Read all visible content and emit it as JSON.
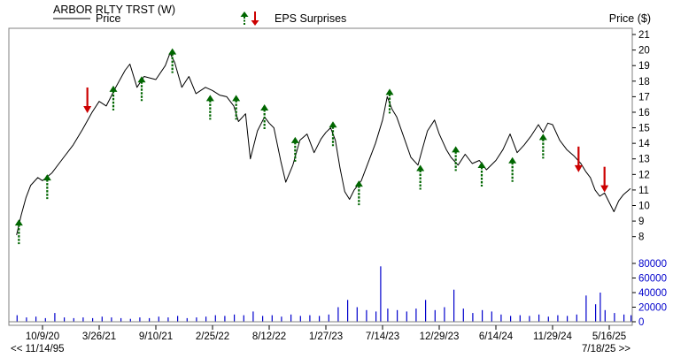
{
  "header": {
    "title": "ARBOR RLTY TRST (W)",
    "legend_price_label": "Price",
    "eps_label": "EPS Surprises",
    "price_axis_label": "Price ($)",
    "start_date_label": "<< 11/14/95",
    "end_date_label": "7/18/25 >>"
  },
  "colors": {
    "price_line": "#000000",
    "volume": "#0000cc",
    "eps_positive": "#006600",
    "eps_negative": "#cc0000",
    "frame": "#808080"
  },
  "chart_data": {
    "type": "line",
    "x_tick_labels": [
      "10/9/20",
      "3/26/21",
      "9/10/21",
      "2/25/22",
      "8/12/22",
      "1/27/23",
      "7/14/23",
      "12/29/23",
      "6/14/24",
      "11/29/24",
      "5/16/25"
    ],
    "x_tick_dates": [
      "2020-10-09",
      "2021-03-26",
      "2021-09-10",
      "2022-02-25",
      "2022-08-12",
      "2023-01-27",
      "2023-07-14",
      "2023-12-29",
      "2024-06-14",
      "2024-11-29",
      "2025-05-16"
    ],
    "price_axis": {
      "ticks": [
        8,
        9,
        10,
        11,
        12,
        13,
        14,
        15,
        16,
        17,
        18,
        19,
        20,
        21
      ],
      "range": [
        7.3,
        21.4
      ]
    },
    "volume_axis": {
      "ticks": [
        0,
        20000,
        40000,
        60000,
        80000
      ],
      "tick_labels": [
        "0",
        "20000",
        "40000",
        "60000",
        "80000"
      ],
      "range": [
        0,
        80000
      ]
    },
    "price_series": [
      [
        "2020-07-24",
        8.1
      ],
      [
        "2020-08-07",
        9.4
      ],
      [
        "2020-08-21",
        10.5
      ],
      [
        "2020-09-04",
        11.3
      ],
      [
        "2020-09-25",
        11.8
      ],
      [
        "2020-10-09",
        11.6
      ],
      [
        "2020-11-06",
        12.1
      ],
      [
        "2020-12-04",
        12.9
      ],
      [
        "2021-01-08",
        13.9
      ],
      [
        "2021-02-05",
        14.9
      ],
      [
        "2021-03-05",
        16.0
      ],
      [
        "2021-03-26",
        16.7
      ],
      [
        "2021-04-16",
        16.4
      ],
      [
        "2021-05-14",
        17.6
      ],
      [
        "2021-06-11",
        18.7
      ],
      [
        "2021-06-25",
        19.1
      ],
      [
        "2021-07-16",
        17.6
      ],
      [
        "2021-08-06",
        18.3
      ],
      [
        "2021-09-10",
        18.1
      ],
      [
        "2021-10-08",
        19.0
      ],
      [
        "2021-10-22",
        19.8
      ],
      [
        "2021-11-05",
        19.2
      ],
      [
        "2021-11-26",
        17.6
      ],
      [
        "2021-12-17",
        18.3
      ],
      [
        "2022-01-07",
        17.2
      ],
      [
        "2022-02-04",
        17.6
      ],
      [
        "2022-02-25",
        17.4
      ],
      [
        "2022-03-18",
        17.1
      ],
      [
        "2022-04-08",
        17.0
      ],
      [
        "2022-04-29",
        16.4
      ],
      [
        "2022-05-13",
        15.4
      ],
      [
        "2022-06-03",
        15.9
      ],
      [
        "2022-06-17",
        13.0
      ],
      [
        "2022-07-08",
        14.8
      ],
      [
        "2022-07-29",
        15.7
      ],
      [
        "2022-08-12",
        15.3
      ],
      [
        "2022-08-26",
        15.0
      ],
      [
        "2022-09-16",
        12.8
      ],
      [
        "2022-09-30",
        11.5
      ],
      [
        "2022-10-21",
        12.6
      ],
      [
        "2022-11-11",
        14.2
      ],
      [
        "2022-12-02",
        14.6
      ],
      [
        "2022-12-23",
        13.4
      ],
      [
        "2023-01-13",
        14.3
      ],
      [
        "2023-01-27",
        14.7
      ],
      [
        "2023-02-10",
        15.0
      ],
      [
        "2023-02-24",
        14.2
      ],
      [
        "2023-03-10",
        12.4
      ],
      [
        "2023-03-24",
        10.9
      ],
      [
        "2023-04-07",
        10.4
      ],
      [
        "2023-04-21",
        11.0
      ],
      [
        "2023-05-12",
        11.6
      ],
      [
        "2023-06-02",
        12.8
      ],
      [
        "2023-06-23",
        14.0
      ],
      [
        "2023-07-14",
        15.5
      ],
      [
        "2023-07-28",
        17.0
      ],
      [
        "2023-08-11",
        16.2
      ],
      [
        "2023-08-25",
        15.7
      ],
      [
        "2023-09-15",
        14.4
      ],
      [
        "2023-10-06",
        13.1
      ],
      [
        "2023-10-27",
        12.6
      ],
      [
        "2023-11-10",
        13.7
      ],
      [
        "2023-11-24",
        14.8
      ],
      [
        "2023-12-15",
        15.5
      ],
      [
        "2023-12-29",
        14.6
      ],
      [
        "2024-01-19",
        13.6
      ],
      [
        "2024-02-02",
        13.1
      ],
      [
        "2024-02-23",
        12.6
      ],
      [
        "2024-03-15",
        13.3
      ],
      [
        "2024-04-05",
        12.7
      ],
      [
        "2024-04-26",
        12.9
      ],
      [
        "2024-05-17",
        12.3
      ],
      [
        "2024-06-14",
        12.9
      ],
      [
        "2024-07-05",
        13.6
      ],
      [
        "2024-07-26",
        14.6
      ],
      [
        "2024-08-16",
        13.4
      ],
      [
        "2024-09-06",
        13.9
      ],
      [
        "2024-09-27",
        14.5
      ],
      [
        "2024-10-18",
        15.2
      ],
      [
        "2024-11-01",
        14.7
      ],
      [
        "2024-11-15",
        15.3
      ],
      [
        "2024-11-29",
        15.2
      ],
      [
        "2024-12-20",
        14.2
      ],
      [
        "2025-01-10",
        13.6
      ],
      [
        "2025-01-31",
        13.2
      ],
      [
        "2025-02-21",
        12.7
      ],
      [
        "2025-03-07",
        12.2
      ],
      [
        "2025-03-21",
        11.8
      ],
      [
        "2025-04-04",
        11.0
      ],
      [
        "2025-04-18",
        10.6
      ],
      [
        "2025-05-02",
        10.8
      ],
      [
        "2025-05-16",
        10.2
      ],
      [
        "2025-05-30",
        9.6
      ],
      [
        "2025-06-13",
        10.3
      ],
      [
        "2025-06-27",
        10.7
      ],
      [
        "2025-07-18",
        11.1
      ]
    ],
    "volume_series": [
      [
        "2020-07-24",
        9000
      ],
      [
        "2020-08-21",
        6000
      ],
      [
        "2020-09-18",
        7000
      ],
      [
        "2020-10-16",
        5000
      ],
      [
        "2020-11-13",
        12000
      ],
      [
        "2020-12-11",
        6000
      ],
      [
        "2021-01-08",
        5000
      ],
      [
        "2021-02-05",
        6000
      ],
      [
        "2021-03-05",
        5000
      ],
      [
        "2021-04-02",
        7000
      ],
      [
        "2021-04-30",
        6000
      ],
      [
        "2021-05-28",
        5000
      ],
      [
        "2021-06-25",
        4000
      ],
      [
        "2021-07-23",
        6000
      ],
      [
        "2021-08-20",
        5000
      ],
      [
        "2021-09-17",
        7000
      ],
      [
        "2021-10-15",
        6000
      ],
      [
        "2021-11-12",
        8000
      ],
      [
        "2021-12-10",
        5000
      ],
      [
        "2022-01-07",
        6000
      ],
      [
        "2022-02-04",
        7000
      ],
      [
        "2022-03-04",
        9000
      ],
      [
        "2022-04-01",
        8000
      ],
      [
        "2022-04-29",
        10000
      ],
      [
        "2022-05-27",
        9000
      ],
      [
        "2022-06-24",
        14000
      ],
      [
        "2022-07-22",
        8000
      ],
      [
        "2022-08-19",
        9000
      ],
      [
        "2022-09-16",
        7000
      ],
      [
        "2022-10-14",
        10000
      ],
      [
        "2022-11-11",
        8000
      ],
      [
        "2022-12-09",
        9000
      ],
      [
        "2023-01-06",
        8000
      ],
      [
        "2023-02-03",
        10000
      ],
      [
        "2023-03-03",
        20000
      ],
      [
        "2023-03-31",
        30000
      ],
      [
        "2023-04-28",
        20000
      ],
      [
        "2023-05-26",
        16000
      ],
      [
        "2023-06-23",
        14000
      ],
      [
        "2023-07-07",
        76000
      ],
      [
        "2023-07-28",
        18000
      ],
      [
        "2023-08-25",
        16000
      ],
      [
        "2023-09-22",
        14000
      ],
      [
        "2023-10-20",
        18000
      ],
      [
        "2023-11-17",
        30000
      ],
      [
        "2023-12-15",
        16000
      ],
      [
        "2024-01-12",
        20000
      ],
      [
        "2024-02-09",
        44000
      ],
      [
        "2024-03-08",
        18000
      ],
      [
        "2024-04-05",
        12000
      ],
      [
        "2024-05-03",
        16000
      ],
      [
        "2024-05-31",
        14000
      ],
      [
        "2024-06-28",
        10000
      ],
      [
        "2024-07-26",
        8000
      ],
      [
        "2024-08-23",
        9000
      ],
      [
        "2024-09-20",
        8000
      ],
      [
        "2024-10-18",
        10000
      ],
      [
        "2024-11-15",
        7000
      ],
      [
        "2024-12-13",
        9000
      ],
      [
        "2025-01-10",
        8000
      ],
      [
        "2025-02-07",
        10000
      ],
      [
        "2025-03-07",
        36000
      ],
      [
        "2025-04-04",
        24000
      ],
      [
        "2025-04-18",
        40000
      ],
      [
        "2025-05-02",
        16000
      ],
      [
        "2025-05-30",
        12000
      ],
      [
        "2025-06-27",
        10000
      ],
      [
        "2025-07-18",
        9000
      ]
    ],
    "eps_surprises": [
      {
        "date": "2020-07-31",
        "direction": "up",
        "price": 9.0
      },
      {
        "date": "2020-10-23",
        "direction": "up",
        "price": 11.9
      },
      {
        "date": "2021-02-19",
        "direction": "down",
        "price": 16.0
      },
      {
        "date": "2021-05-07",
        "direction": "up",
        "price": 17.6
      },
      {
        "date": "2021-07-30",
        "direction": "up",
        "price": 18.2
      },
      {
        "date": "2021-10-29",
        "direction": "up",
        "price": 20.0
      },
      {
        "date": "2022-02-18",
        "direction": "up",
        "price": 17.0
      },
      {
        "date": "2022-05-06",
        "direction": "up",
        "price": 17.0
      },
      {
        "date": "2022-07-29",
        "direction": "up",
        "price": 16.4
      },
      {
        "date": "2022-10-28",
        "direction": "up",
        "price": 14.3
      },
      {
        "date": "2023-02-17",
        "direction": "up",
        "price": 15.3
      },
      {
        "date": "2023-05-05",
        "direction": "up",
        "price": 11.5
      },
      {
        "date": "2023-08-04",
        "direction": "up",
        "price": 17.4
      },
      {
        "date": "2023-11-03",
        "direction": "up",
        "price": 12.5
      },
      {
        "date": "2024-02-16",
        "direction": "up",
        "price": 13.7
      },
      {
        "date": "2024-05-03",
        "direction": "up",
        "price": 12.7
      },
      {
        "date": "2024-08-02",
        "direction": "up",
        "price": 13.0
      },
      {
        "date": "2024-11-01",
        "direction": "up",
        "price": 14.5
      },
      {
        "date": "2025-02-14",
        "direction": "down",
        "price": 12.2
      },
      {
        "date": "2025-05-02",
        "direction": "down",
        "price": 10.9
      }
    ]
  }
}
